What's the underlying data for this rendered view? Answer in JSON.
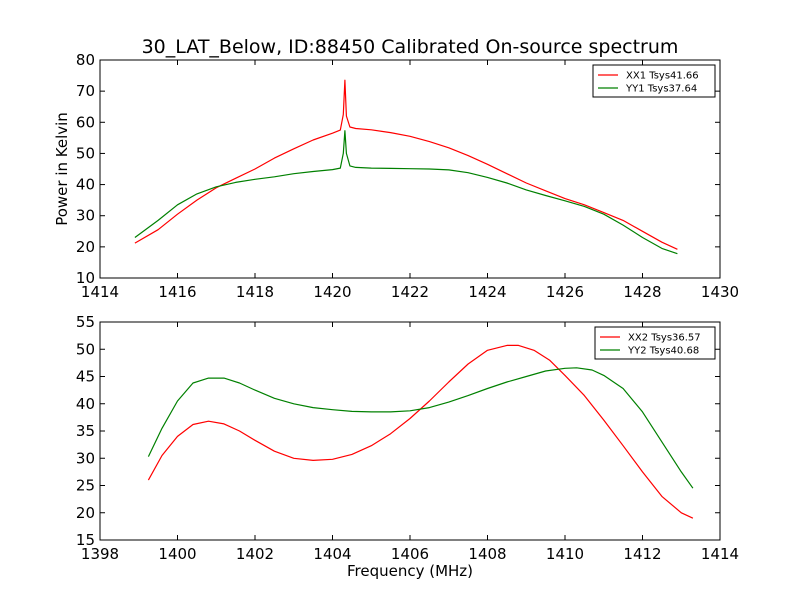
{
  "figure_title": "30_LAT_Below, ID:88450 Calibrated On-source spectrum",
  "chart_data": [
    {
      "type": "line",
      "xlim": [
        1414,
        1430
      ],
      "ylim": [
        10,
        80
      ],
      "xticks": [
        1414,
        1416,
        1418,
        1420,
        1422,
        1424,
        1426,
        1428,
        1430
      ],
      "yticks": [
        10,
        20,
        30,
        40,
        50,
        60,
        70,
        80
      ],
      "xlabel": "",
      "ylabel": "Power in Kelvin",
      "legend_position": "top-right",
      "grid": false,
      "series": [
        {
          "name": "XX1 Tsys41.66",
          "color": "#ff0000",
          "x": [
            1414.9,
            1415.5,
            1416.0,
            1416.5,
            1417.0,
            1417.5,
            1418.0,
            1418.5,
            1419.0,
            1419.5,
            1420.0,
            1420.2,
            1420.28,
            1420.32,
            1420.36,
            1420.45,
            1420.6,
            1421.0,
            1421.5,
            1422.0,
            1422.5,
            1423.0,
            1423.5,
            1424.0,
            1424.5,
            1425.0,
            1425.5,
            1426.0,
            1426.5,
            1427.0,
            1427.5,
            1428.0,
            1428.5,
            1428.9
          ],
          "y": [
            21.2,
            25.5,
            30.5,
            35.0,
            39.0,
            42.0,
            45.0,
            48.5,
            51.5,
            54.3,
            56.5,
            57.5,
            62.5,
            73.5,
            62.0,
            58.5,
            58.0,
            57.6,
            56.7,
            55.5,
            53.8,
            51.8,
            49.3,
            46.5,
            43.5,
            40.5,
            38.0,
            35.5,
            33.5,
            31.0,
            28.5,
            25.0,
            21.5,
            19.2
          ]
        },
        {
          "name": "YY1 Tsys37.64",
          "color": "#008000",
          "x": [
            1414.9,
            1415.5,
            1416.0,
            1416.5,
            1417.0,
            1417.5,
            1418.0,
            1418.5,
            1419.0,
            1419.5,
            1420.0,
            1420.2,
            1420.28,
            1420.32,
            1420.36,
            1420.45,
            1420.6,
            1421.0,
            1421.5,
            1422.0,
            1422.5,
            1423.0,
            1423.5,
            1424.0,
            1424.5,
            1425.0,
            1425.5,
            1426.0,
            1426.5,
            1427.0,
            1427.5,
            1428.0,
            1428.5,
            1428.9
          ],
          "y": [
            23.0,
            28.5,
            33.5,
            37.0,
            39.3,
            40.7,
            41.7,
            42.5,
            43.5,
            44.2,
            44.8,
            45.3,
            50.0,
            57.3,
            50.0,
            46.0,
            45.5,
            45.3,
            45.2,
            45.1,
            45.0,
            44.7,
            43.8,
            42.3,
            40.5,
            38.3,
            36.5,
            34.8,
            33.0,
            30.5,
            27.0,
            23.0,
            19.5,
            17.8
          ]
        }
      ]
    },
    {
      "type": "line",
      "xlim": [
        1398,
        1414
      ],
      "ylim": [
        15,
        55
      ],
      "xticks": [
        1398,
        1400,
        1402,
        1404,
        1406,
        1408,
        1410,
        1412,
        1414
      ],
      "yticks": [
        15,
        20,
        25,
        30,
        35,
        40,
        45,
        50,
        55
      ],
      "xlabel": "Frequency (MHz)",
      "ylabel": "",
      "legend_position": "top-right",
      "grid": false,
      "series": [
        {
          "name": "XX2 Tsys36.57",
          "color": "#ff0000",
          "x": [
            1399.25,
            1399.6,
            1400.0,
            1400.4,
            1400.8,
            1401.2,
            1401.6,
            1402.0,
            1402.5,
            1403.0,
            1403.5,
            1404.0,
            1404.5,
            1405.0,
            1405.5,
            1406.0,
            1406.5,
            1407.0,
            1407.5,
            1408.0,
            1408.5,
            1408.8,
            1409.2,
            1409.6,
            1410.0,
            1410.5,
            1411.0,
            1411.5,
            1412.0,
            1412.5,
            1413.0,
            1413.3
          ],
          "y": [
            26.0,
            30.5,
            34.0,
            36.2,
            36.8,
            36.3,
            35.0,
            33.3,
            31.3,
            30.0,
            29.6,
            29.8,
            30.7,
            32.3,
            34.5,
            37.3,
            40.5,
            44.0,
            47.3,
            49.8,
            50.7,
            50.7,
            49.8,
            48.0,
            45.2,
            41.5,
            37.0,
            32.3,
            27.5,
            23.0,
            20.0,
            19.0
          ]
        },
        {
          "name": "YY2 Tsys40.68",
          "color": "#008000",
          "x": [
            1399.25,
            1399.6,
            1400.0,
            1400.4,
            1400.8,
            1401.2,
            1401.6,
            1402.0,
            1402.5,
            1403.0,
            1403.5,
            1404.0,
            1404.5,
            1405.0,
            1405.5,
            1406.0,
            1406.5,
            1407.0,
            1407.5,
            1408.0,
            1408.5,
            1409.0,
            1409.5,
            1410.0,
            1410.3,
            1410.7,
            1411.0,
            1411.5,
            1412.0,
            1412.5,
            1413.0,
            1413.3
          ],
          "y": [
            30.3,
            35.5,
            40.5,
            43.8,
            44.7,
            44.7,
            43.8,
            42.5,
            41.0,
            40.0,
            39.3,
            38.9,
            38.6,
            38.5,
            38.5,
            38.7,
            39.3,
            40.3,
            41.5,
            42.8,
            44.0,
            45.0,
            46.0,
            46.5,
            46.6,
            46.2,
            45.2,
            42.8,
            38.5,
            33.0,
            27.5,
            24.5
          ]
        }
      ]
    }
  ]
}
